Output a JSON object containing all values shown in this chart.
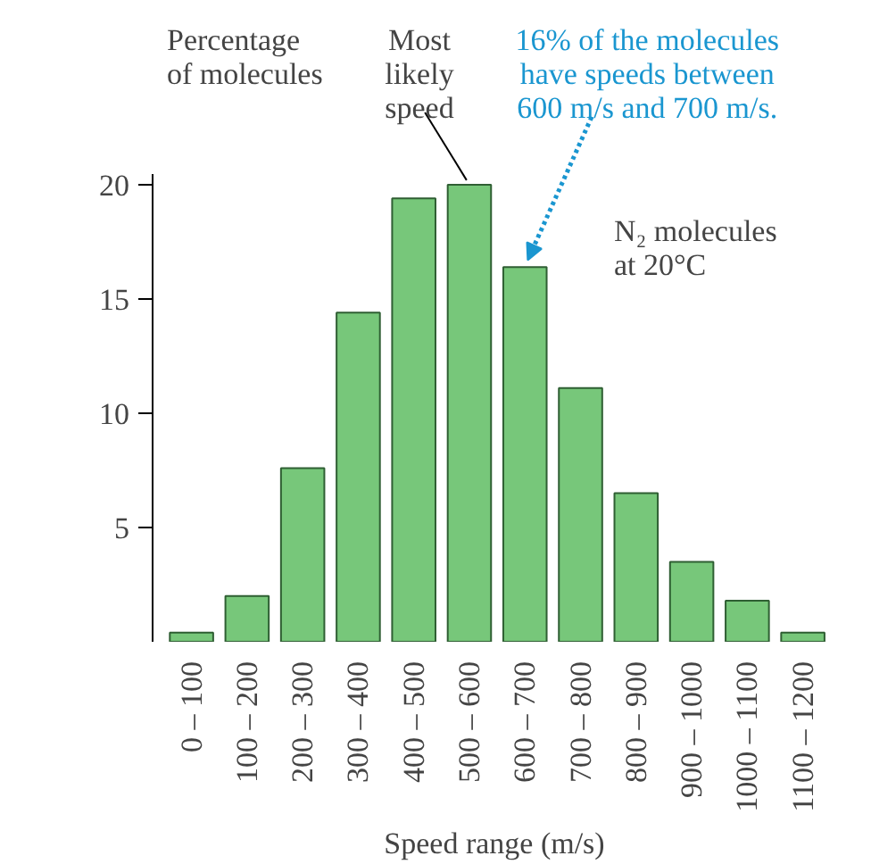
{
  "chart_data": {
    "type": "bar",
    "xlabel": "Speed range (m/s)",
    "ylabel": "Percentage\nof molecules",
    "categories": [
      "0 – 100",
      "100 – 200",
      "200 – 300",
      "300 – 400",
      "400 – 500",
      "500 – 600",
      "600 – 700",
      "700 – 800",
      "800 – 900",
      "900 – 1000",
      "1000 – 1100",
      "1100 – 1200"
    ],
    "values": [
      0.4,
      2,
      7.6,
      14.4,
      19.4,
      20,
      16.4,
      11.1,
      6.5,
      3.5,
      1.8,
      0.4
    ],
    "color": "#77c77a",
    "ylim": [
      0,
      20.5
    ],
    "yticks": [
      5,
      10,
      15,
      20
    ],
    "grid": false,
    "annotations": [
      {
        "text": "Most\nlikely\nspeed",
        "x": "500 – 600",
        "y": 20
      },
      {
        "text": "16% of the molecules\nhave speeds between\n600 m/s and 700 m/s.",
        "x": "600 – 700",
        "y": 16.4
      },
      "N₂ molecules\nat 20°C"
    ]
  }
}
